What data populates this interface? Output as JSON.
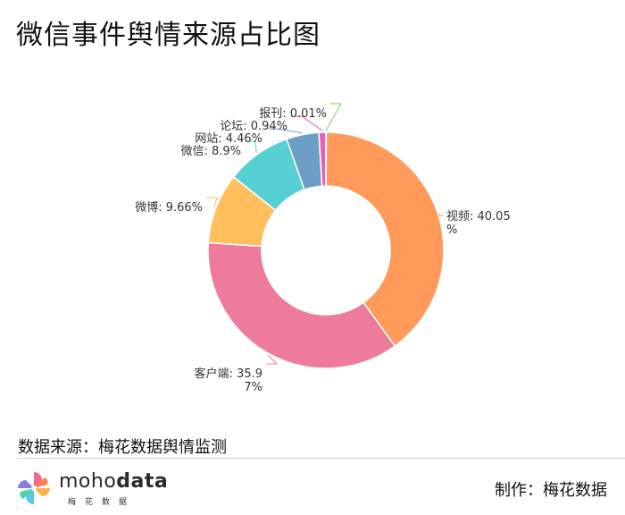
{
  "title": "微信事件舆情来源占比图",
  "source_text": "数据来源：梅花数据舆情监测",
  "logo": {
    "name_light": "moho",
    "name_bold": "data",
    "subtitle": "梅花数据"
  },
  "maker_text": "制作：梅花数据",
  "chart_data": {
    "type": "pie",
    "donut": true,
    "title": "微信事件舆情来源占比图",
    "slices": [
      {
        "label": "视频",
        "value": 40.05,
        "label_text": "视频: 40.05%",
        "color": "#ff9a5a"
      },
      {
        "label": "客户端",
        "value": 35.97,
        "label_text": "客户端: 35.97%",
        "color": "#ee7b9b"
      },
      {
        "label": "微博",
        "value": 9.66,
        "label_text": "微博: 9.66%",
        "color": "#ffbf5c"
      },
      {
        "label": "微信",
        "value": 8.9,
        "label_text": "微信: 8.9%",
        "color": "#56cfd2"
      },
      {
        "label": "网站",
        "value": 4.46,
        "label_text": "网站: 4.46%",
        "color": "#6d9ec6"
      },
      {
        "label": "论坛",
        "value": 0.94,
        "label_text": "论坛: 0.94%",
        "color": "#ee5cb6"
      },
      {
        "label": "报刊",
        "value": 0.01,
        "label_text": "报刊: 0.01%",
        "color": "#7fcf6a"
      }
    ]
  }
}
